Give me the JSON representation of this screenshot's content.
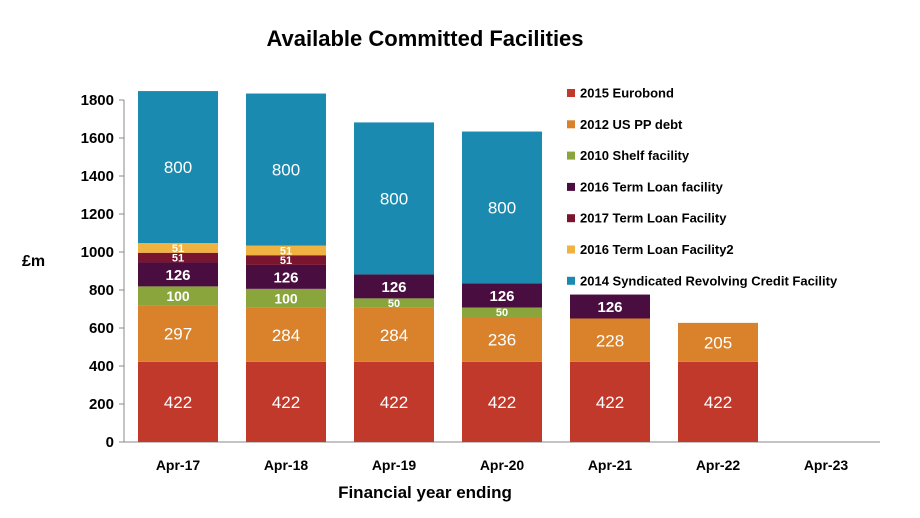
{
  "chart_data": {
    "type": "bar",
    "stacked": true,
    "title": "Available Committed Facilities",
    "xlabel": "Financial year ending",
    "ylabel": "£m",
    "ylim": [
      0,
      1800
    ],
    "yticks": [
      0,
      200,
      400,
      600,
      800,
      1000,
      1200,
      1400,
      1600,
      1800
    ],
    "categories": [
      "Apr-17",
      "Apr-18",
      "Apr-19",
      "Apr-20",
      "Apr-21",
      "Apr-22",
      "Apr-23"
    ],
    "grid": false,
    "legend_position": "right",
    "series": [
      {
        "name": "2015 Eurobond",
        "color": "#c0392b",
        "values": [
          422,
          422,
          422,
          422,
          422,
          422,
          0
        ]
      },
      {
        "name": "2012 US PP debt",
        "color": "#d9822b",
        "values": [
          297,
          284,
          284,
          236,
          228,
          205,
          0
        ]
      },
      {
        "name": "2010 Shelf facility",
        "color": "#8aa53b",
        "values": [
          100,
          100,
          50,
          50,
          0,
          0,
          0
        ]
      },
      {
        "name": "2016 Term Loan facility",
        "color": "#4a0d3f",
        "values": [
          126,
          126,
          126,
          126,
          126,
          0,
          0
        ]
      },
      {
        "name": "2017 Term Loan Facility",
        "color": "#7a1530",
        "values": [
          51,
          51,
          0,
          0,
          0,
          0,
          0
        ]
      },
      {
        "name": "2016 Term Loan Facility2",
        "color": "#f0b240",
        "values": [
          51,
          51,
          0,
          0,
          0,
          0,
          0
        ]
      },
      {
        "name": "2014 Syndicated Revolving Credit Facility",
        "color": "#1a8ab0",
        "values": [
          800,
          800,
          800,
          800,
          0,
          0,
          0
        ]
      }
    ]
  }
}
